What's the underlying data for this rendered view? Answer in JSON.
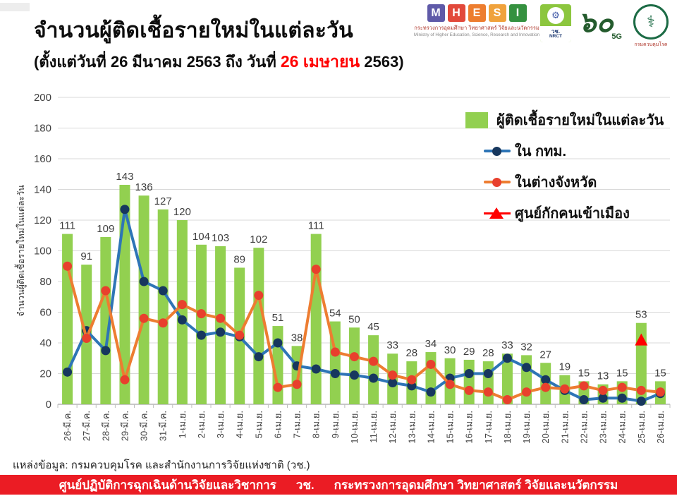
{
  "header": {
    "title": "จำนวนผู้ติดเชื้อรายใหม่ในแต่ละวัน",
    "subtitle_prefix": "(ตั้งแต่วันที่ 26 มีนาคม 2563 ถึง วันที่ ",
    "subtitle_highlight": "26 เมษายน",
    "subtitle_suffix": " 2563)",
    "highlight_color": "#ff0000"
  },
  "logos": {
    "mhesi": {
      "letters": [
        "M",
        "H",
        "E",
        "S",
        "I"
      ],
      "letter_colors": [
        "#5f5aa8",
        "#e2493b",
        "#ed7d2f",
        "#f0a23c",
        "#35913f"
      ],
      "thai_line": "กระทรวงการอุดมศึกษา วิทยาศาสตร์ วิจัยและนวัตกรรม",
      "english_line": "Ministry of Higher Education, Science, Research and Innovation"
    },
    "nrct": {
      "emblem": "⚙",
      "thai": "วช.",
      "english": "NRCT"
    },
    "sixty_5g": {
      "numeral": "๖๐",
      "label": "5G"
    },
    "ddc": {
      "emblem": "⚕",
      "label": "กรมควบคุมโรค"
    }
  },
  "chart_data": {
    "type": "combo-bar-line",
    "title": "จำนวนผู้ติดเชื้อรายใหม่ในแต่ละวัน",
    "xlabel": "",
    "ylabel": "จำนวนผู้ติดเชื้อรายใหม่ในแต่ละวัน",
    "ylim": [
      0,
      200
    ],
    "ytick_step": 20,
    "grid": true,
    "legend_position": "top-right",
    "categories": [
      "26-มี.ค.",
      "27-มี.ค.",
      "28-มี.ค.",
      "29-มี.ค.",
      "30-มี.ค.",
      "31-มี.ค.",
      "1-เม.ย.",
      "2-เม.ย.",
      "3-เม.ย.",
      "4-เม.ย.",
      "5-เม.ย.",
      "6-เม.ย.",
      "7-เม.ย.",
      "8-เม.ย.",
      "9-เม.ย.",
      "10-เม.ย.",
      "11-เม.ย.",
      "12-เม.ย.",
      "13-เม.ย.",
      "14-เม.ย.",
      "15-เม.ย.",
      "16-เม.ย.",
      "17-เม.ย.",
      "18-เม.ย.",
      "19-เม.ย.",
      "20-เม.ย.",
      "21-เม.ย.",
      "22-เม.ย.",
      "23-เม.ย.",
      "24-เม.ย.",
      "25-เม.ย.",
      "26-เม.ย."
    ],
    "series": [
      {
        "name": "ผู้ติดเชื้อรายใหม่ในแต่ละวัน",
        "type": "bar",
        "color": "#92d050",
        "values": [
          111,
          91,
          109,
          143,
          136,
          127,
          120,
          104,
          103,
          89,
          102,
          51,
          38,
          111,
          54,
          50,
          45,
          33,
          28,
          34,
          30,
          29,
          28,
          33,
          32,
          27,
          19,
          15,
          13,
          15,
          53,
          15
        ]
      },
      {
        "name": "ใน กทม.",
        "type": "line",
        "color": "#2e75b6",
        "marker_color": "#17375e",
        "values": [
          21,
          48,
          35,
          127,
          80,
          74,
          55,
          45,
          47,
          44,
          31,
          40,
          25,
          23,
          20,
          19,
          17,
          14,
          12,
          8,
          17,
          20,
          20,
          30,
          24,
          16,
          9,
          3,
          4,
          4,
          2,
          7
        ]
      },
      {
        "name": "ในต่างจังหวัด",
        "type": "line",
        "color": "#ed7d31",
        "marker_color": "#e8402d",
        "values": [
          90,
          43,
          74,
          16,
          56,
          53,
          65,
          59,
          56,
          45,
          71,
          11,
          13,
          88,
          34,
          31,
          28,
          19,
          16,
          26,
          13,
          9,
          8,
          3,
          8,
          11,
          10,
          12,
          9,
          11,
          9,
          8
        ]
      },
      {
        "name": "ศูนย์กักคนเข้าเมือง",
        "type": "triangle-marker",
        "color": "#ff0000",
        "points": [
          {
            "category": "25-เม.ย.",
            "index": 30,
            "value": 42
          }
        ]
      }
    ]
  },
  "footer": {
    "source": "แหล่งข้อมูล: กรมควบคุมโรค และสำนักงานการวิจัยแห่งชาติ (วช.)",
    "banner_parts": [
      "ศูนย์ปฏิบัติการฉุกเฉินด้านวิจัยและวิชาการ",
      "วช.",
      "กระทรวงการอุดมศึกษา วิทยาศาสตร์ วิจัยและนวัตกรรม"
    ],
    "banner_color": "#eb1c24"
  }
}
